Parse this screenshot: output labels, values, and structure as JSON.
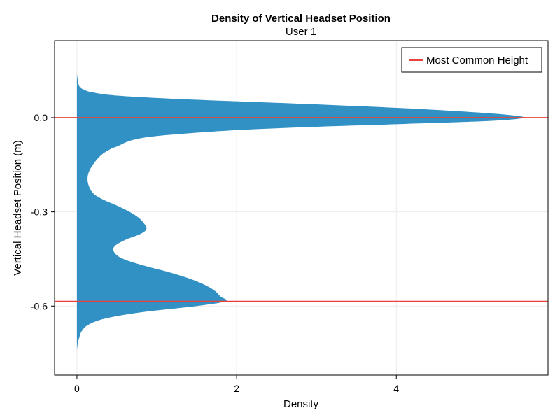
{
  "chart_data": {
    "type": "area",
    "orientation": "horizontal-density",
    "title": "Density of Vertical Headset Position",
    "subtitle": "User 1",
    "xlabel": "Density",
    "ylabel": "Vertical Headset Position (m)",
    "xlim": [
      -0.28,
      5.9
    ],
    "ylim": [
      -0.82,
      0.245
    ],
    "xticks": [
      0,
      2,
      4
    ],
    "xtick_labels": [
      "0",
      "2",
      "4"
    ],
    "yticks": [
      0.0,
      -0.3,
      -0.6
    ],
    "ytick_labels": [
      "0.0",
      "-0.3",
      "-0.6"
    ],
    "grid": true,
    "fill_color": "#3191c4",
    "line_color": "#e8413b",
    "legend": {
      "position": "top-right",
      "entries": [
        "Most Common Height"
      ]
    },
    "hlines": [
      0.0,
      -0.585
    ],
    "density_curve": {
      "y": [
        0.14,
        0.12,
        0.1,
        0.09,
        0.08,
        0.07,
        0.06,
        0.05,
        0.04,
        0.03,
        0.02,
        0.01,
        0.0,
        -0.01,
        -0.02,
        -0.03,
        -0.04,
        -0.05,
        -0.06,
        -0.07,
        -0.08,
        -0.09,
        -0.1,
        -0.12,
        -0.15,
        -0.18,
        -0.21,
        -0.24,
        -0.26,
        -0.28,
        -0.3,
        -0.32,
        -0.34,
        -0.355,
        -0.37,
        -0.39,
        -0.41,
        -0.43,
        -0.45,
        -0.47,
        -0.49,
        -0.51,
        -0.53,
        -0.55,
        -0.57,
        -0.585,
        -0.6,
        -0.62,
        -0.64,
        -0.66,
        -0.68,
        -0.7,
        -0.72,
        -0.74
      ],
      "density": [
        0.0,
        0.01,
        0.03,
        0.08,
        0.2,
        0.5,
        1.2,
        2.2,
        3.2,
        4.1,
        4.8,
        5.35,
        5.6,
        5.2,
        4.1,
        2.9,
        2.0,
        1.4,
        0.95,
        0.72,
        0.6,
        0.52,
        0.42,
        0.3,
        0.2,
        0.14,
        0.14,
        0.2,
        0.32,
        0.5,
        0.66,
        0.78,
        0.85,
        0.87,
        0.8,
        0.6,
        0.47,
        0.47,
        0.58,
        0.82,
        1.12,
        1.38,
        1.58,
        1.72,
        1.8,
        1.86,
        1.5,
        0.8,
        0.35,
        0.14,
        0.06,
        0.03,
        0.01,
        0.0
      ]
    }
  }
}
